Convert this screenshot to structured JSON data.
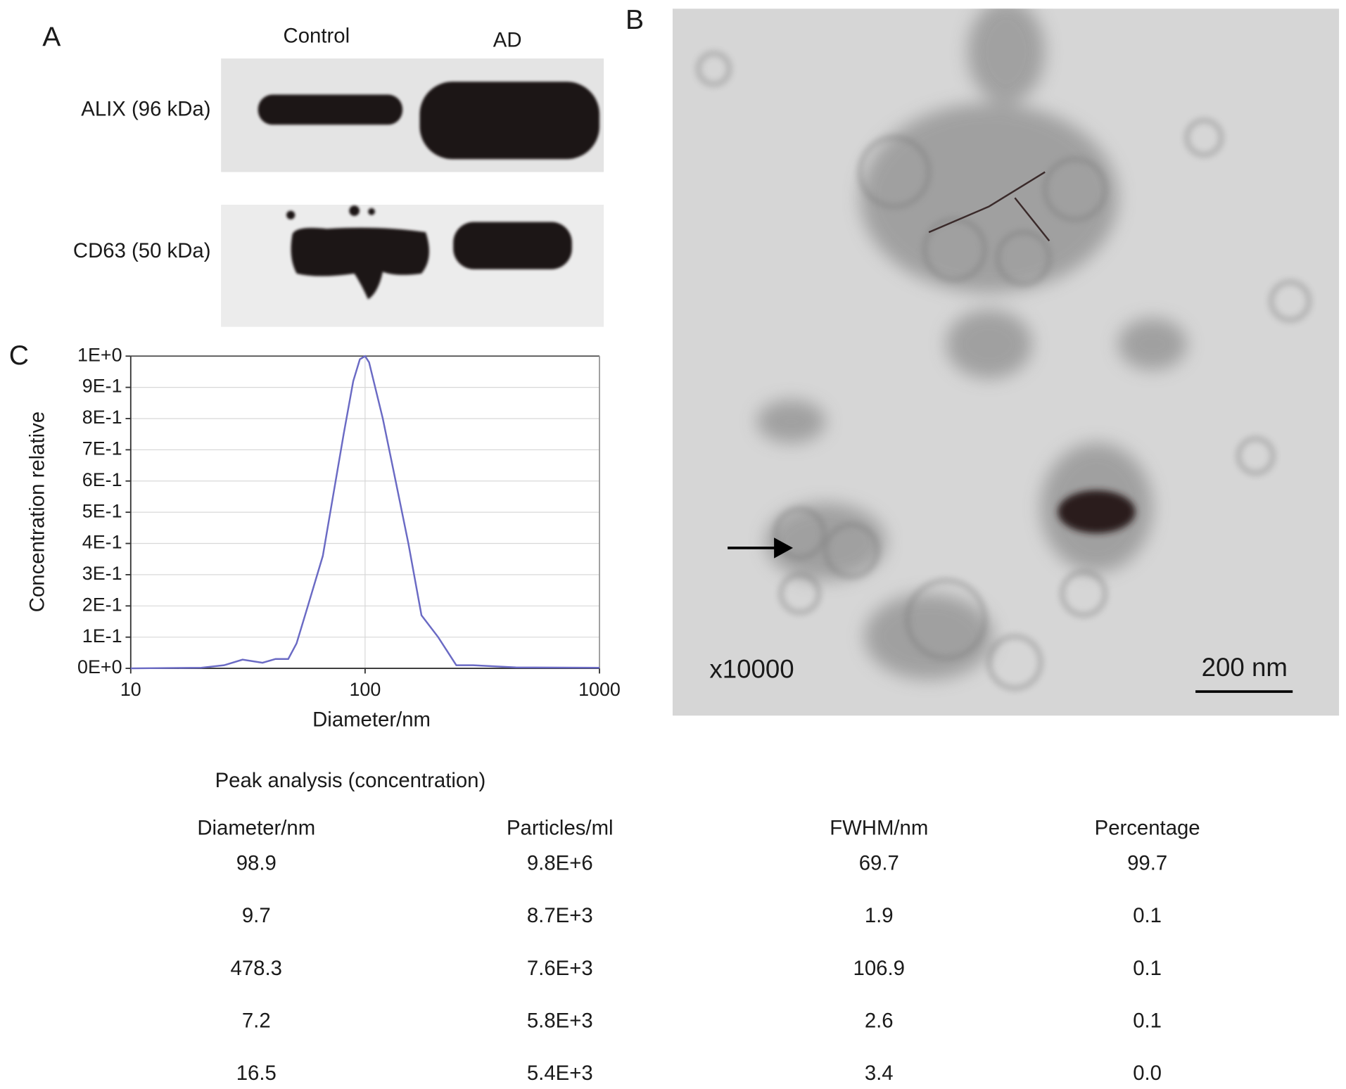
{
  "panel_a": {
    "letter": "A",
    "lanes": [
      "Control",
      "AD"
    ],
    "rows": [
      "ALIX (96 kDa)",
      "CD63 (50 kDa)"
    ]
  },
  "panel_b": {
    "letter": "B",
    "magnification": "x10000",
    "scale_bar": "200 nm"
  },
  "panel_c": {
    "letter": "C"
  },
  "chart_data": {
    "type": "line",
    "xlabel": "Diameter/nm",
    "ylabel": "Concentration relative",
    "x": [
      10,
      20,
      25,
      30,
      36.5,
      41.5,
      47,
      51,
      57,
      66,
      81,
      89,
      95,
      100,
      104,
      119,
      135,
      153,
      174,
      205,
      245,
      289,
      440,
      1000
    ],
    "values": [
      0,
      0.002,
      0.01,
      0.028,
      0.018,
      0.03,
      0.03,
      0.08,
      0.2,
      0.36,
      0.75,
      0.92,
      0.99,
      1.0,
      0.98,
      0.8,
      0.6,
      0.4,
      0.17,
      0.1,
      0.01,
      0.01,
      0.003,
      0.002
    ],
    "color": "#6a6ac4",
    "log_x": true,
    "grid": true,
    "xlim": [
      10,
      1000
    ],
    "ylim": [
      0,
      1
    ],
    "xticks": [
      10,
      100,
      1000
    ],
    "yticks": [
      {
        "value": 0,
        "label": "0E+0"
      },
      {
        "value": 0.1,
        "label": "1E-1"
      },
      {
        "value": 0.2,
        "label": "2E-1"
      },
      {
        "value": 0.3,
        "label": "3E-1"
      },
      {
        "value": 0.4,
        "label": "4E-1"
      },
      {
        "value": 0.5,
        "label": "5E-1"
      },
      {
        "value": 0.6,
        "label": "6E-1"
      },
      {
        "value": 0.7,
        "label": "7E-1"
      },
      {
        "value": 0.8,
        "label": "8E-1"
      },
      {
        "value": 0.9,
        "label": "9E-1"
      },
      {
        "value": 1,
        "label": "1E+0"
      }
    ]
  },
  "table": {
    "title": "Peak analysis (concentration)",
    "headers": [
      "Diameter/nm",
      "Particles/ml",
      "FWHM/nm",
      "Percentage"
    ],
    "rows": [
      [
        "98.9",
        "9.8E+6",
        "69.7",
        "99.7"
      ],
      [
        "9.7",
        "8.7E+3",
        "1.9",
        "0.1"
      ],
      [
        "478.3",
        "7.6E+3",
        "106.9",
        "0.1"
      ],
      [
        "7.2",
        "5.8E+3",
        "2.6",
        "0.1"
      ],
      [
        "16.5",
        "5.4E+3",
        "3.4",
        "0.0"
      ]
    ]
  }
}
